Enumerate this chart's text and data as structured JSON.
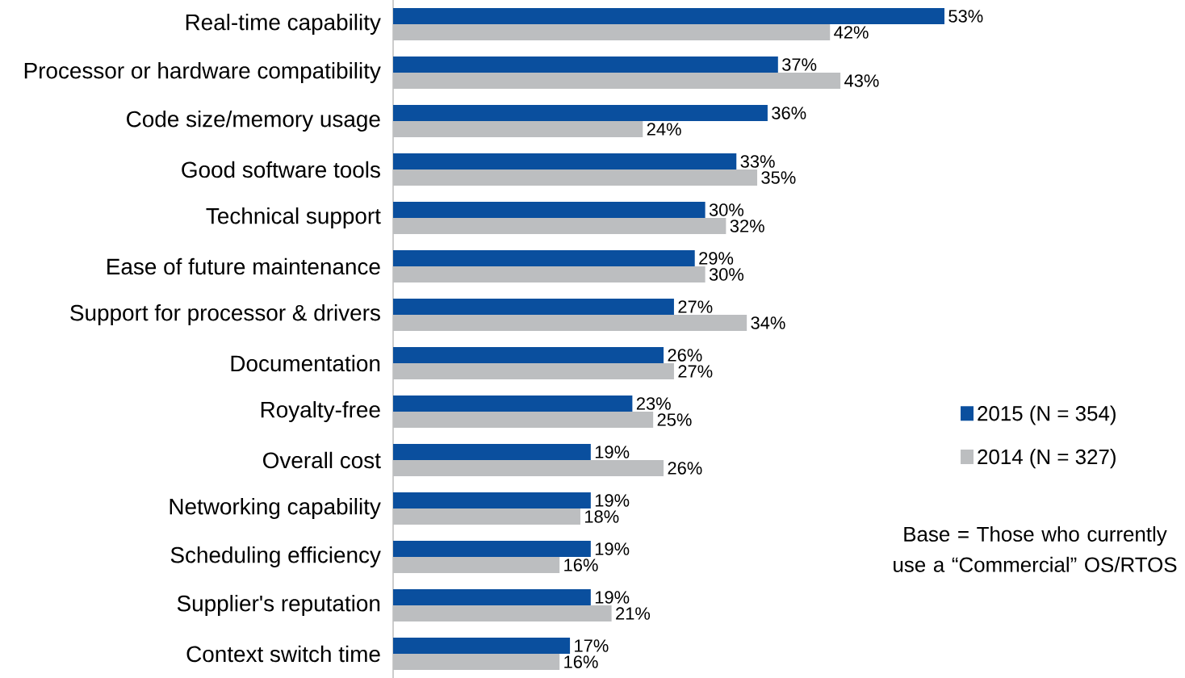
{
  "chart_data": {
    "type": "bar",
    "orientation": "horizontal",
    "legend": "right",
    "categories": [
      "Real-time capability",
      "Processor or hardware compatibility",
      "Code size/memory usage",
      "Good software tools",
      "Technical support",
      "Ease of future maintenance",
      "Support for processor & drivers",
      "Documentation",
      "Royalty-free",
      "Overall cost",
      "Networking capability",
      "Scheduling efficiency",
      "Supplier's reputation",
      "Context switch time"
    ],
    "series": [
      {
        "name": "2015 (N = 354)",
        "color": "#0a4f9e",
        "values": [
          53,
          37,
          36,
          33,
          30,
          29,
          27,
          26,
          23,
          19,
          19,
          19,
          19,
          17
        ],
        "value_labels": [
          "53%",
          "37%",
          "36%",
          "33%",
          "30%",
          "29%",
          "27%",
          "26%",
          "23%",
          "19%",
          "19%",
          "19%",
          "19%",
          "17%"
        ]
      },
      {
        "name": "2014 (N = 327)",
        "color": "#bcbec0",
        "values": [
          42,
          43,
          24,
          35,
          32,
          30,
          34,
          27,
          25,
          26,
          18,
          16,
          21,
          16
        ],
        "value_labels": [
          "42%",
          "43%",
          "24%",
          "35%",
          "32%",
          "30%",
          "34%",
          "27%",
          "25%",
          "26%",
          "18%",
          "16%",
          "21%",
          "16%"
        ]
      }
    ],
    "annotations": [
      "Base = Those who currently use a “Commercial” OS/RTOS"
    ]
  }
}
